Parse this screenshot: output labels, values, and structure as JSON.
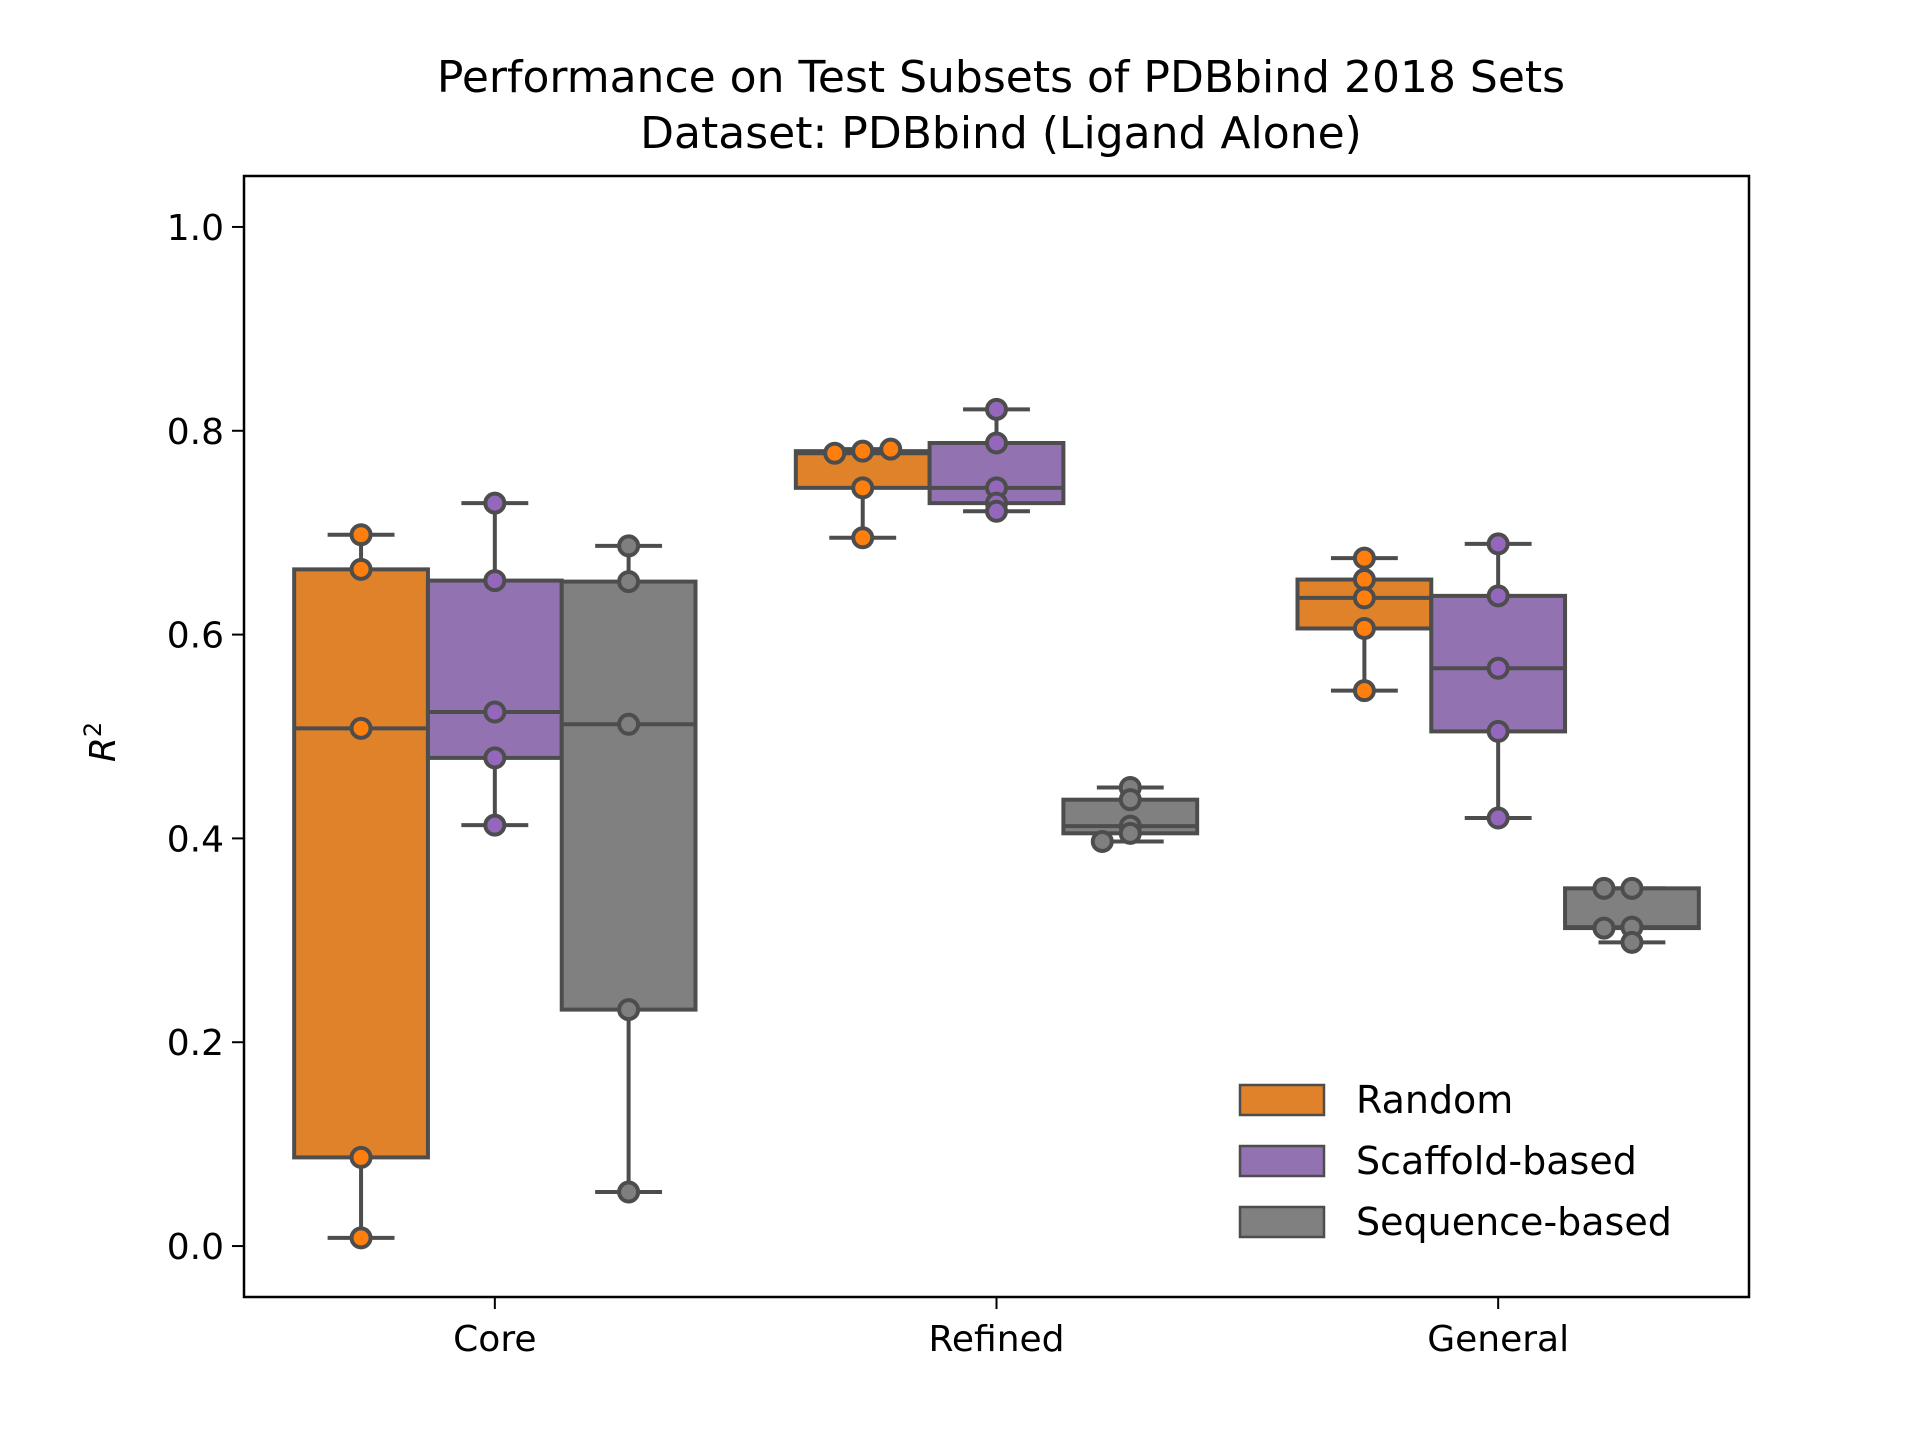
{
  "chart_data": {
    "type": "box",
    "title": "Performance on Test Subsets of PDBbind 2018 Sets",
    "subtitle": "Dataset: PDBbind (Ligand Alone)",
    "xlabel": "",
    "ylabel": "R",
    "ylabel_superscript": "2",
    "ylim": [
      -0.05,
      1.05
    ],
    "yticks": [
      "0.0",
      "0.2",
      "0.4",
      "0.6",
      "0.8",
      "1.0"
    ],
    "grid": false,
    "legend_position": "lower-right",
    "categories": [
      "Core",
      "Refined",
      "General"
    ],
    "series": [
      {
        "name": "Random",
        "color": "#e0822a",
        "point_color": "#ff7f0e",
        "points": [
          [
            0.698,
            0.664,
            0.508,
            0.087,
            0.008
          ],
          [
            0.78,
            0.778,
            0.782,
            0.744,
            0.695
          ],
          [
            0.675,
            0.654,
            0.636,
            0.606,
            0.545
          ]
        ]
      },
      {
        "name": "Scaffold-based",
        "color": "#9372b2",
        "point_color": "#9467bd",
        "points": [
          [
            0.729,
            0.653,
            0.524,
            0.479,
            0.413
          ],
          [
            0.821,
            0.788,
            0.744,
            0.729,
            0.721
          ],
          [
            0.689,
            0.638,
            0.567,
            0.505,
            0.42
          ]
        ]
      },
      {
        "name": "Sequence-based",
        "color": "#808080",
        "point_color": "#7f7f7f",
        "points": [
          [
            0.687,
            0.652,
            0.512,
            0.232,
            0.053
          ],
          [
            0.45,
            0.438,
            0.412,
            0.405,
            0.397
          ],
          [
            0.351,
            0.351,
            0.313,
            0.312,
            0.298
          ]
        ]
      }
    ]
  }
}
